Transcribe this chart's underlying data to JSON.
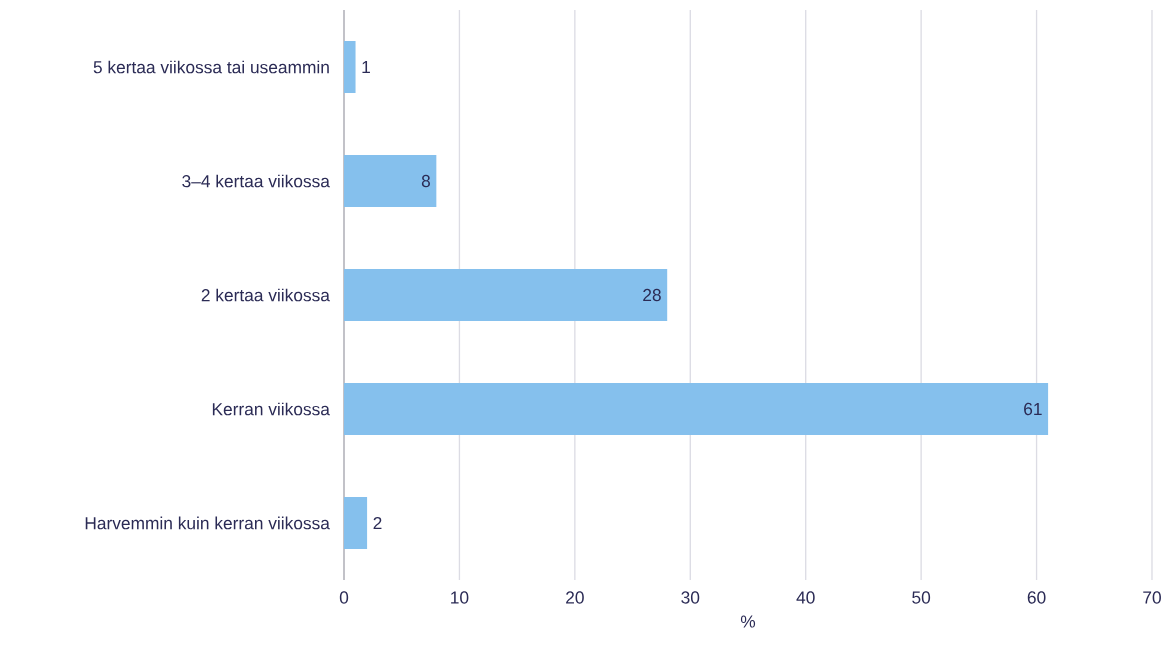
{
  "chart_data": {
    "type": "bar",
    "orientation": "horizontal",
    "xlabel": "%",
    "categories": [
      "5 kertaa viikossa tai useammin",
      "3–4 kertaa viikossa",
      "2 kertaa viikossa",
      "Kerran viikossa",
      "Harvemmin kuin kerran viikossa"
    ],
    "values": [
      1,
      8,
      28,
      61,
      2
    ],
    "color": "#85c0ed",
    "xlim": [
      0,
      70
    ],
    "xticks": [
      0,
      10,
      20,
      30,
      40,
      50,
      60,
      70
    ],
    "grid": "x",
    "data_labels": true
  }
}
